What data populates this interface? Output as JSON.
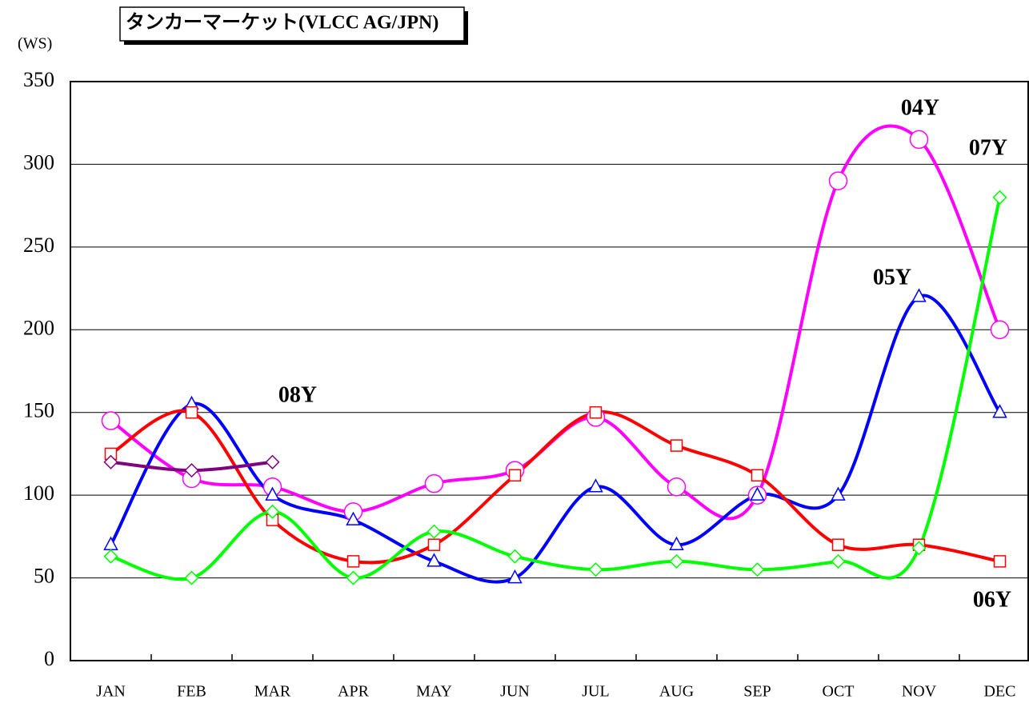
{
  "chart_data": {
    "type": "line",
    "title": "タンカーマーケット(VLCC AG/JPN)",
    "y_label": "(WS)",
    "categories": [
      "JAN",
      "FEB",
      "MAR",
      "APR",
      "MAY",
      "JUN",
      "JUL",
      "AUG",
      "SEP",
      "OCT",
      "NOV",
      "DEC"
    ],
    "ylim": [
      0,
      350
    ],
    "yticks": [
      0,
      50,
      100,
      150,
      200,
      250,
      300,
      350
    ],
    "grid": true,
    "series": [
      {
        "name": "04Y",
        "color": "#ff00ff",
        "marker": "circle",
        "values": [
          145,
          110,
          105,
          90,
          107,
          115,
          147,
          105,
          100,
          290,
          315,
          200
        ]
      },
      {
        "name": "05Y",
        "color": "#0000ff",
        "marker": "triangle",
        "values": [
          70,
          155,
          100,
          85,
          60,
          50,
          105,
          70,
          100,
          100,
          220,
          150
        ]
      },
      {
        "name": "06Y",
        "color": "#ff0000",
        "marker": "square",
        "values": [
          125,
          150,
          85,
          60,
          70,
          112,
          150,
          130,
          112,
          70,
          70,
          60
        ]
      },
      {
        "name": "07Y",
        "color": "#00ff00",
        "marker": "diamond",
        "values": [
          63,
          50,
          90,
          50,
          78,
          63,
          55,
          60,
          55,
          60,
          68,
          280
        ]
      },
      {
        "name": "08Y",
        "color": "#800080",
        "marker": "diamond",
        "values": [
          120,
          115,
          120,
          null,
          null,
          null,
          null,
          null,
          null,
          null,
          null,
          null
        ]
      }
    ]
  }
}
